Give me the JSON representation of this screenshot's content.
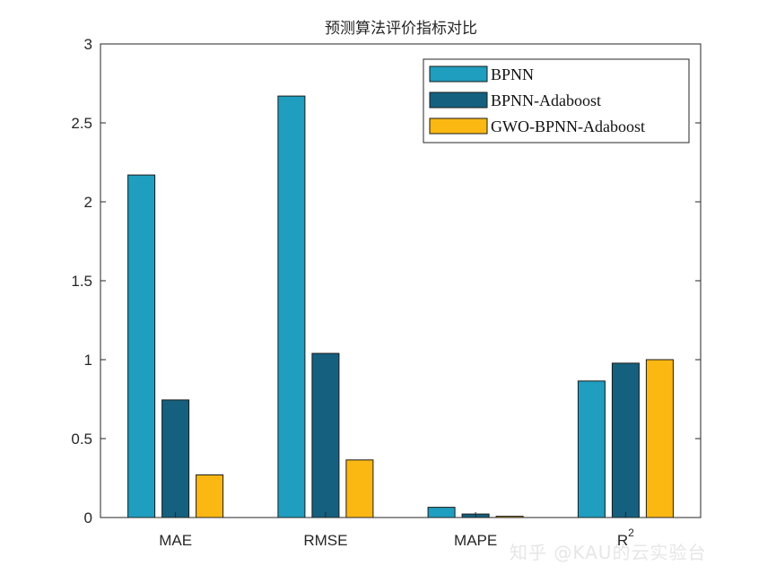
{
  "chart_data": {
    "type": "bar",
    "title": "预测算法评价指标对比",
    "categories": [
      "MAE",
      "RMSE",
      "MAPE",
      "R"
    ],
    "category_superscripts": [
      "",
      "",
      "",
      "2"
    ],
    "series": [
      {
        "name": "BPNN",
        "color": "#1f9ebf",
        "values": [
          2.17,
          2.67,
          0.065,
          0.865
        ]
      },
      {
        "name": "BPNN-Adaboost",
        "color": "#15607f",
        "values": [
          0.745,
          1.04,
          0.022,
          0.978
        ]
      },
      {
        "name": "GWO-BPNN-Adaboost",
        "color": "#fbb812",
        "values": [
          0.27,
          0.365,
          0.008,
          1.0
        ]
      }
    ],
    "ylim": [
      0,
      3
    ],
    "yticks": [
      "0",
      "0.5",
      "1",
      "1.5",
      "2",
      "2.5",
      "3"
    ],
    "grid": false,
    "legend_position": "top-right",
    "xlabel": "",
    "ylabel": ""
  },
  "watermark": "知乎 @KAU的云实验台"
}
